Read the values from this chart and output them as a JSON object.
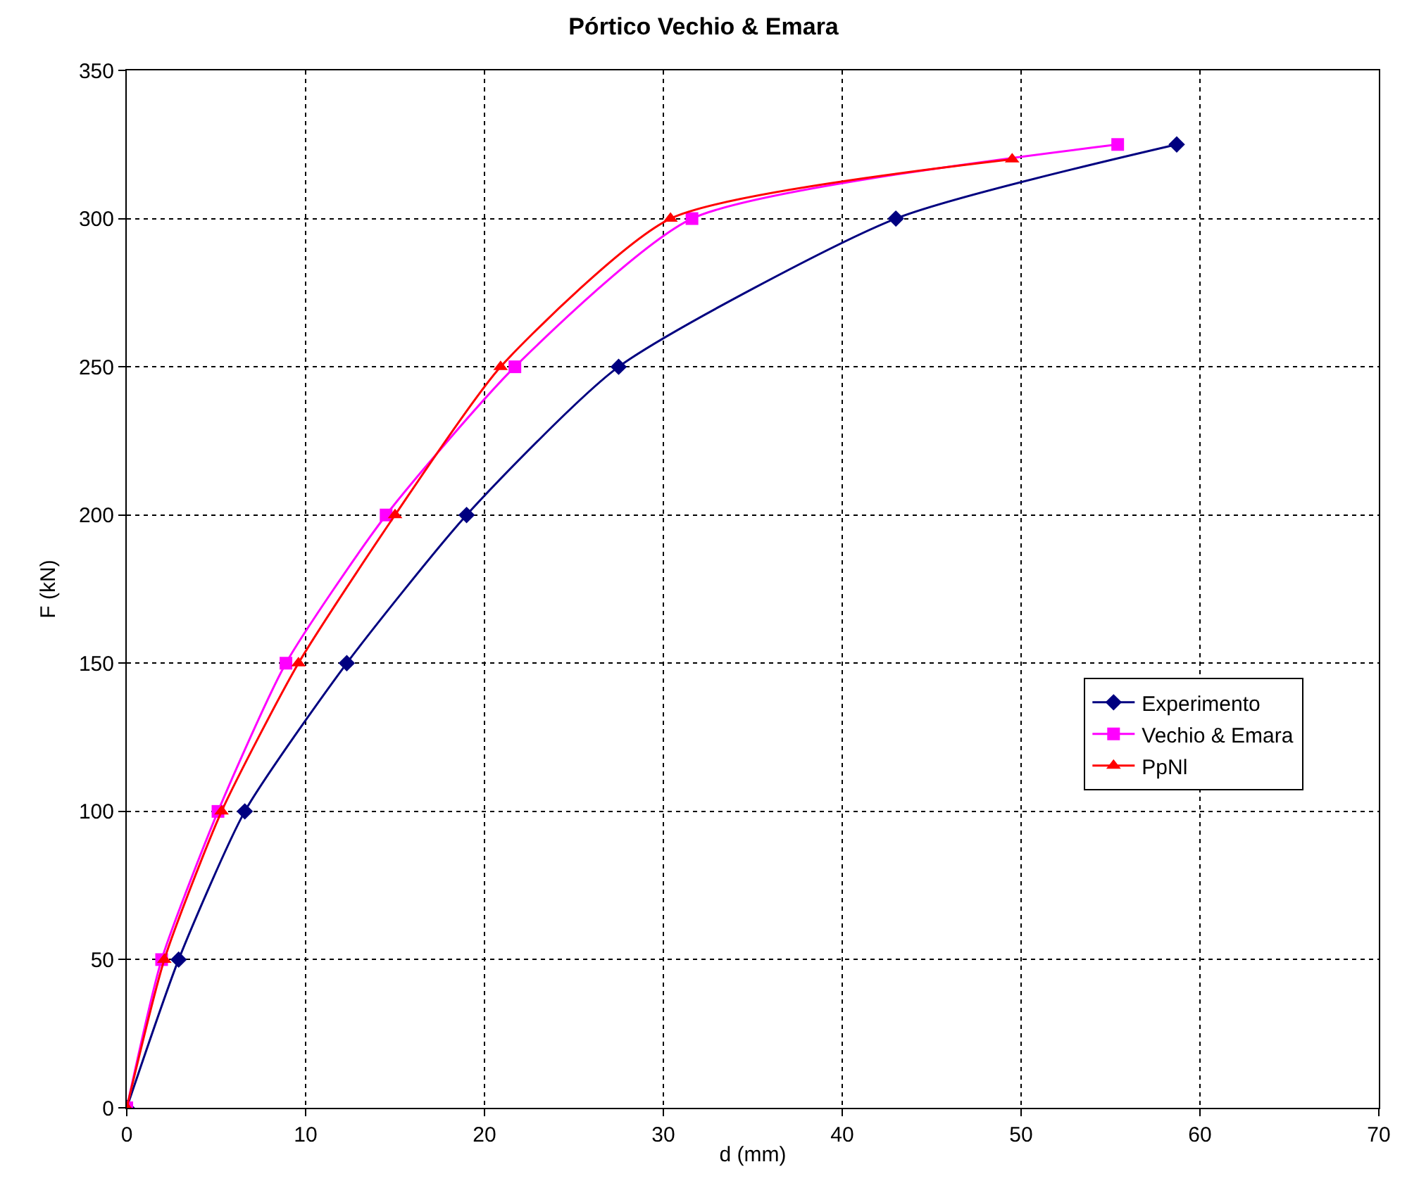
{
  "chart_data": {
    "type": "line",
    "title": "Pórtico Vechio & Emara",
    "xlabel": "d (mm)",
    "ylabel": "F (kN)",
    "xlim": [
      0,
      70
    ],
    "xticks": [
      0,
      10,
      20,
      30,
      40,
      50,
      60,
      70
    ],
    "ylim": [
      0,
      350
    ],
    "yticks": [
      0,
      50,
      100,
      150,
      200,
      250,
      300,
      350
    ],
    "grid": true,
    "legend": "right",
    "line_style": "solid",
    "series": [
      {
        "name": "Experimento",
        "color": "#000080",
        "marker": "diamond",
        "x": [
          0,
          2.9,
          6.6,
          12.3,
          19.0,
          27.5,
          43.0,
          58.7
        ],
        "values": [
          0,
          50,
          100,
          150,
          200,
          250,
          300,
          325
        ]
      },
      {
        "name": "Vechio & Emara",
        "color": "#ff00ff",
        "marker": "square",
        "x": [
          0,
          1.95,
          5.1,
          8.9,
          14.5,
          21.7,
          31.6,
          55.4
        ],
        "values": [
          0,
          50,
          100,
          150,
          200,
          250,
          300,
          325
        ]
      },
      {
        "name": "PpNl",
        "color": "#ff0000",
        "marker": "triangle",
        "x": [
          0,
          2.1,
          5.3,
          9.6,
          15.0,
          20.9,
          30.4,
          49.5
        ],
        "values": [
          0,
          50,
          100,
          150,
          200,
          250,
          300,
          320
        ]
      }
    ]
  }
}
